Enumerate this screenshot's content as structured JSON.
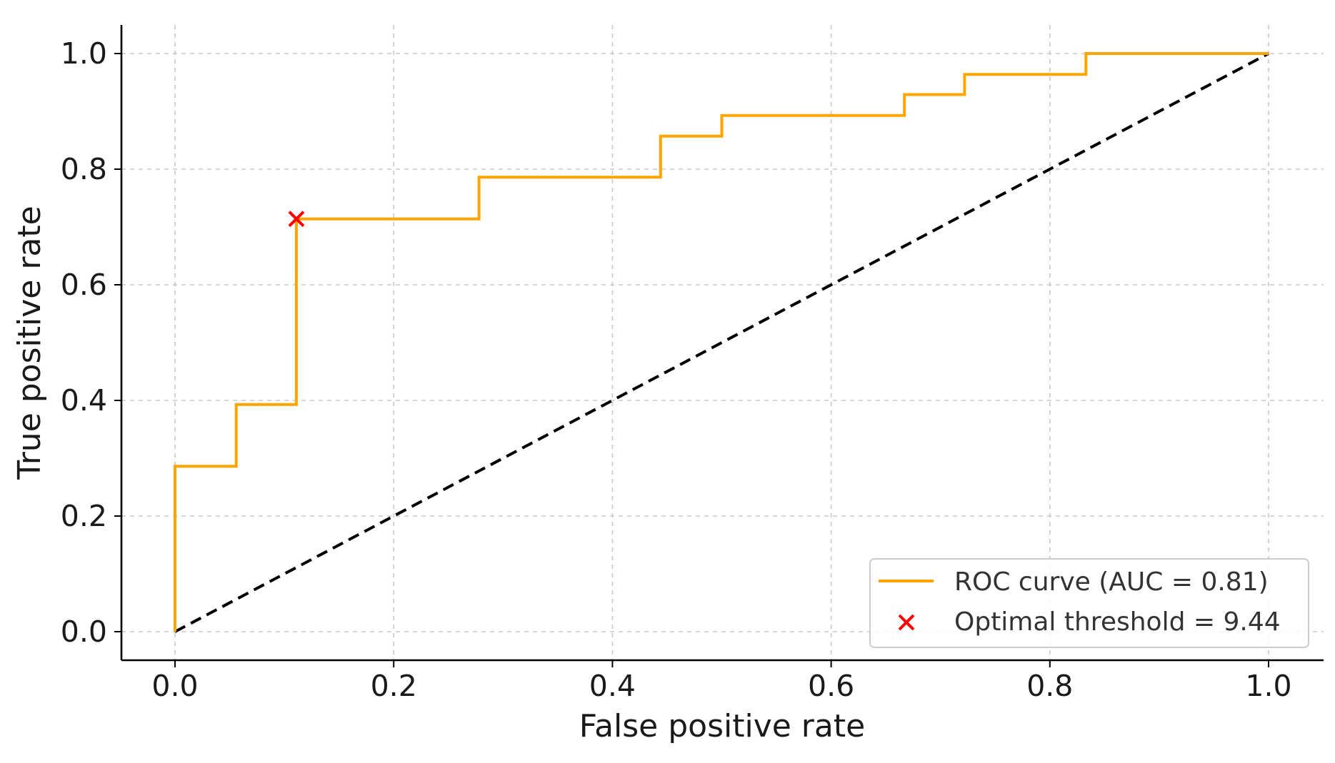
{
  "chart_data": {
    "type": "line",
    "title": "",
    "xlabel": "False positive rate",
    "ylabel": "True positive rate",
    "xlim": [
      -0.05,
      1.05
    ],
    "ylim": [
      -0.05,
      1.05
    ],
    "xticks": [
      0.0,
      0.2,
      0.4,
      0.6,
      0.8,
      1.0
    ],
    "yticks": [
      0.0,
      0.2,
      0.4,
      0.6,
      0.8,
      1.0
    ],
    "xtick_labels": [
      "0.0",
      "0.2",
      "0.4",
      "0.6",
      "0.8",
      "1.0"
    ],
    "ytick_labels": [
      "0.0",
      "0.2",
      "0.4",
      "0.6",
      "0.8",
      "1.0"
    ],
    "grid": true,
    "legend_position": "lower-right",
    "series": [
      {
        "name": "ROC curve (AUC = 0.81)",
        "style": "step",
        "color": "#ffa500",
        "x": [
          0.0,
          0.0,
          0.056,
          0.056,
          0.111,
          0.111,
          0.278,
          0.278,
          0.444,
          0.444,
          0.5,
          0.5,
          0.667,
          0.667,
          0.722,
          0.722,
          0.833,
          0.833,
          1.0
        ],
        "y": [
          0.0,
          0.286,
          0.286,
          0.393,
          0.393,
          0.714,
          0.714,
          0.786,
          0.786,
          0.857,
          0.857,
          0.893,
          0.893,
          0.929,
          0.929,
          0.964,
          0.964,
          1.0,
          1.0
        ]
      },
      {
        "name": "chance-diagonal",
        "style": "dashed",
        "color": "#000000",
        "show_in_legend": false,
        "x": [
          0.0,
          1.0
        ],
        "y": [
          0.0,
          1.0
        ]
      }
    ],
    "markers": [
      {
        "name": "Optimal threshold = 9.44",
        "symbol": "x",
        "color": "#ff0000",
        "x": 0.111,
        "y": 0.714
      }
    ],
    "legend": [
      {
        "label": "ROC curve (AUC = 0.81)",
        "kind": "line",
        "color": "#ffa500"
      },
      {
        "label": "Optimal threshold = 9.44",
        "kind": "x-marker",
        "color": "#ff0000"
      }
    ]
  }
}
